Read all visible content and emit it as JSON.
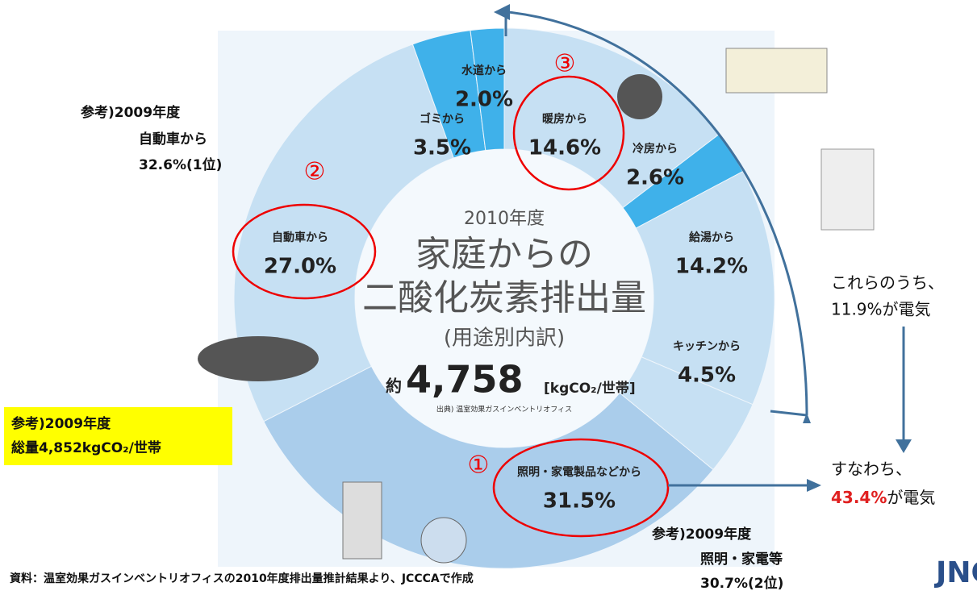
{
  "chart_data": {
    "type": "donut",
    "categories": [
      "暖房から",
      "冷房から",
      "給湯から",
      "キッチンから",
      "照明・家電製品などから",
      "自動車から",
      "ゴミから",
      "水道から"
    ],
    "values": [
      14.6,
      2.6,
      14.2,
      4.5,
      31.5,
      27.0,
      3.5,
      2.0
    ],
    "value_labels": [
      "14.6%",
      "2.6%",
      "14.2%",
      "4.5%",
      "31.5%",
      "27.0%",
      "3.5%",
      "2.0%"
    ],
    "colors": [
      "#c6e0f3",
      "#3fb1ea",
      "#c6e0f3",
      "#c6e0f3",
      "#aacdeb",
      "#c6e0f3",
      "#3fb1ea",
      "#3fb1ea"
    ],
    "center": {
      "year": "2010年度",
      "title_line1": "家庭からの",
      "title_line2": "二酸化炭素排出量",
      "subtitle": "(用途別内訳)",
      "approx": "約",
      "total": "4,758",
      "unit": "[kgCO₂/世帯]",
      "source": "出典) 温室効果ガスインベントリオフィス"
    },
    "annotations": {
      "rank1": "①",
      "rank2": "②",
      "rank3": "③",
      "ref_car": [
        "参考)2009年度",
        "自動車から",
        "32.6%(1位)"
      ],
      "ref_light": [
        "参考)2009年度",
        "照明・家電等",
        "30.7%(2位)"
      ],
      "ref_total": [
        "参考)2009年度",
        "総量4,852kgCO₂/世帯"
      ],
      "electric_part": [
        "これらのうち、",
        "11.9%が電気"
      ],
      "electric_total_intro": "すなわち、",
      "electric_total_value": "43.4%",
      "electric_total_rest": "が電気",
      "footer": "資料：温室効果ガスインベントリオフィスの2010年度排出量推計結果より、JCCCAで作成",
      "logo": "JNC"
    }
  }
}
